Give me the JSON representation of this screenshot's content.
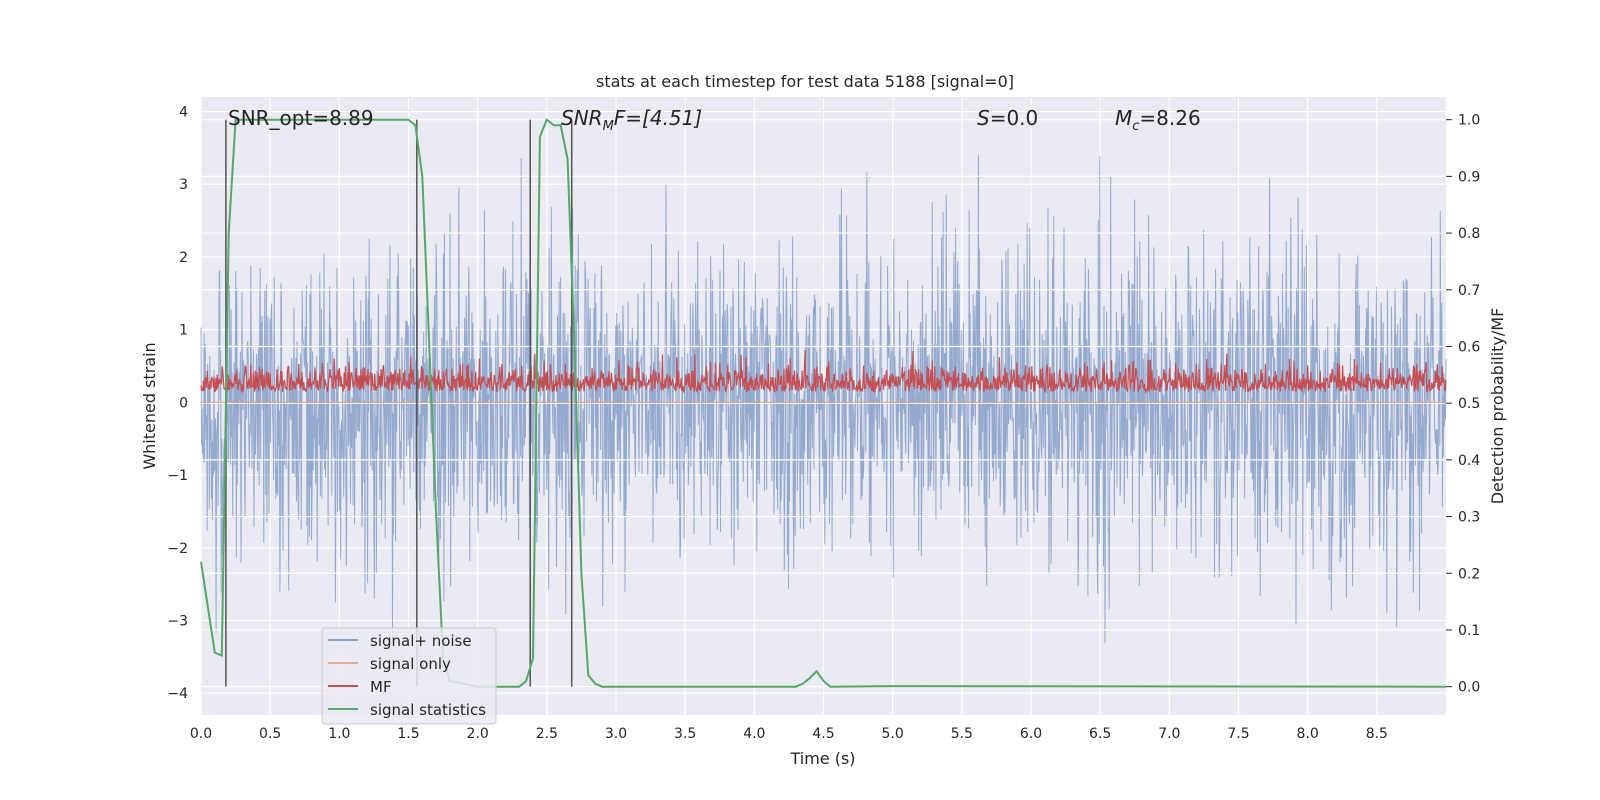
{
  "chart_data": {
    "type": "line",
    "title": "stats at each timestep for test data 5188 [signal=0]",
    "xlabel": "Time (s)",
    "ylabel": "Whitened strain",
    "y2label": "Detection probability/MF",
    "xlim": [
      0.0,
      9.0
    ],
    "ylim": [
      -4.3,
      4.2
    ],
    "y2lim": [
      -0.05,
      1.04
    ],
    "xticks": [
      "0.0",
      "0.5",
      "1.0",
      "1.5",
      "2.0",
      "2.5",
      "3.0",
      "3.5",
      "4.0",
      "4.5",
      "5.0",
      "5.5",
      "6.0",
      "6.5",
      "7.0",
      "7.5",
      "8.0",
      "8.5"
    ],
    "yticks": [
      "4",
      "3",
      "2",
      "1",
      "0",
      "−1",
      "−2",
      "−3",
      "−4"
    ],
    "y2ticks": [
      "1.0",
      "0.9",
      "0.8",
      "0.7",
      "0.6",
      "0.5",
      "0.4",
      "0.3",
      "0.2",
      "0.1",
      "0.0"
    ],
    "grid": true,
    "legend_position": "lower-left",
    "annotations": {
      "snr_opt": "SNR_opt=8.89",
      "snr_mf_base": "SNR",
      "snr_mf_sub": "M",
      "snr_mf_rest": "F=[4.51]",
      "s_base": "S",
      "s_rest": "=0.0",
      "mc_base": "M",
      "mc_sub": "c",
      "mc_rest": "=8.26"
    },
    "vertical_markers": [
      0.18,
      1.56,
      2.38,
      2.68
    ],
    "series": [
      {
        "name": "signal+ noise",
        "axis": "left",
        "color": "#4c72b0",
        "noise_std": 1.0,
        "approx_envelope": [
          -3.8,
          3.4
        ]
      },
      {
        "name": "signal only",
        "axis": "left",
        "color": "#dd8452",
        "values_note": "zero signal"
      },
      {
        "name": "MF",
        "axis": "right",
        "color": "#c44e52",
        "baseline": 0.52,
        "approx_range": [
          0.5,
          0.6
        ]
      },
      {
        "name": "signal statistics",
        "axis": "right",
        "color": "#55a868",
        "x": [
          0.0,
          0.05,
          0.1,
          0.15,
          0.2,
          0.25,
          0.3,
          0.5,
          1.0,
          1.5,
          1.55,
          1.6,
          1.65,
          1.7,
          1.75,
          1.8,
          2.0,
          2.3,
          2.35,
          2.4,
          2.45,
          2.5,
          2.55,
          2.6,
          2.65,
          2.7,
          2.75,
          2.8,
          2.85,
          2.9,
          3.0,
          4.0,
          4.3,
          4.35,
          4.4,
          4.45,
          4.5,
          4.55,
          5.0,
          9.0
        ],
        "y": [
          0.22,
          0.14,
          0.06,
          0.055,
          0.8,
          1.0,
          1.0,
          1.0,
          1.0,
          1.0,
          0.99,
          0.9,
          0.6,
          0.3,
          0.05,
          0.01,
          0.0,
          0.0,
          0.01,
          0.05,
          0.97,
          1.0,
          0.99,
          0.99,
          0.93,
          0.6,
          0.2,
          0.02,
          0.005,
          0.0,
          0.0,
          0.0,
          0.0,
          0.005,
          0.015,
          0.027,
          0.01,
          0.0,
          0.001,
          0.0
        ]
      }
    ]
  }
}
